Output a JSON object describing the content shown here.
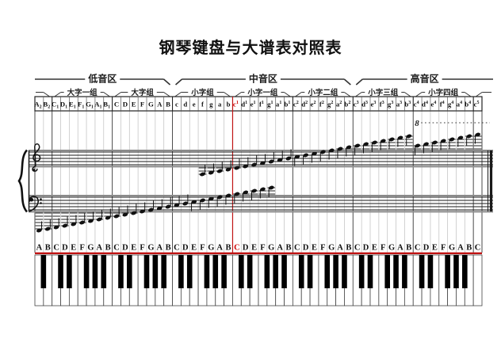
{
  "title": "钢琴键盘与大谱表对照表",
  "regions": [
    {
      "label": "低音区",
      "start": 1,
      "end": 16
    },
    {
      "label": "中音区",
      "start": 17,
      "end": 37
    },
    {
      "label": "高音区",
      "start": 38,
      "end": 52
    }
  ],
  "octave_groups": [
    {
      "label": "",
      "start": 1,
      "end": 2
    },
    {
      "label": "大字一组",
      "start": 3,
      "end": 9
    },
    {
      "label": "大字组",
      "start": 10,
      "end": 16
    },
    {
      "label": "小字组",
      "start": 17,
      "end": 23
    },
    {
      "label": "小字一组",
      "start": 24,
      "end": 30
    },
    {
      "label": "小字二组",
      "start": 31,
      "end": 37
    },
    {
      "label": "小字三组",
      "start": 38,
      "end": 44
    },
    {
      "label": "小字四组",
      "start": 45,
      "end": 51
    },
    {
      "label": "",
      "start": 52,
      "end": 52
    }
  ],
  "note_names": [
    "A_2",
    "B_2",
    "C_1",
    "D_1",
    "E_1",
    "F_1",
    "G_1",
    "A_1",
    "B_1",
    "C",
    "D",
    "E",
    "F",
    "G",
    "A",
    "B",
    "c",
    "d",
    "e",
    "f",
    "g",
    "a",
    "b",
    "c^1",
    "d^1",
    "e^1",
    "f^1",
    "g^1",
    "a^1",
    "b^1",
    "c^2",
    "d^2",
    "e^2",
    "f^2",
    "g^2",
    "a^2",
    "b^2",
    "c^3",
    "d^3",
    "e^3",
    "f^3",
    "g^3",
    "a^3",
    "b^3",
    "c^4",
    "d^4",
    "e^4",
    "f^4",
    "g^4",
    "a^4",
    "b^4",
    "c^5"
  ],
  "key_letters": [
    "A",
    "B",
    "C",
    "D",
    "E",
    "F",
    "G",
    "A",
    "B",
    "C",
    "D",
    "E",
    "F",
    "G",
    "A",
    "B",
    "C",
    "D",
    "E",
    "F",
    "G",
    "A",
    "B",
    "C",
    "D",
    "E",
    "F",
    "G",
    "A",
    "B",
    "C",
    "D",
    "E",
    "F",
    "G",
    "A",
    "B",
    "C",
    "D",
    "E",
    "F",
    "G",
    "A",
    "B",
    "C",
    "D",
    "E",
    "F",
    "G",
    "A",
    "B",
    "C"
  ],
  "middle_c": {
    "key_index": 24,
    "table_label": "c1",
    "keyboard_letter": "C"
  },
  "staff_notes": {
    "bass_clef_keys": {
      "first": 1,
      "last": 28
    },
    "treble_clef_keys": {
      "first": 20,
      "last": 52
    },
    "ottava_keys": {
      "first": 45,
      "last": 52
    }
  },
  "notation": {
    "ottava_label": "8"
  },
  "colors": {
    "accent_red": "#c01414",
    "letter_red": "#cc0000",
    "grid_light": "#c6c6c6",
    "grid_dark": "#4a4a4a",
    "staff_line": "#1a1a1a",
    "band_gray": "#8a8a8a",
    "black_key": "#000000",
    "white_key": "#ffffff"
  }
}
